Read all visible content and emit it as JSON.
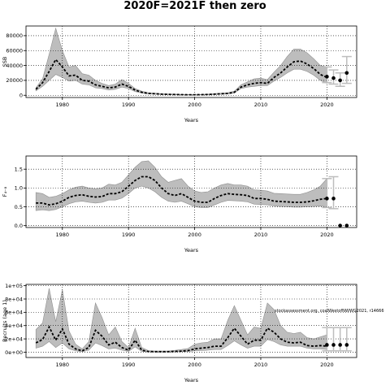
{
  "title": "2020F=2021F then zero",
  "chart_data": [
    {
      "type": "line",
      "ylabel": "SSB",
      "xlabel": "Years",
      "xlim": [
        1974.5,
        2024.5
      ],
      "ylim": [
        -3000,
        93000
      ],
      "xticks": [
        1980,
        1990,
        2000,
        2010,
        2020
      ],
      "yticks": [
        0,
        20000,
        40000,
        60000,
        80000
      ],
      "ytick_labels": [
        "0",
        "20000",
        "40000",
        "60000",
        "80000"
      ],
      "grid": "dotted",
      "x": [
        1976,
        1977,
        1978,
        1979,
        1980,
        1981,
        1982,
        1983,
        1984,
        1985,
        1986,
        1987,
        1988,
        1989,
        1990,
        1991,
        1992,
        1993,
        1994,
        1995,
        1996,
        1997,
        1998,
        1999,
        2000,
        2001,
        2002,
        2003,
        2004,
        2005,
        2006,
        2007,
        2008,
        2009,
        2010,
        2011,
        2012,
        2013,
        2014,
        2015,
        2016,
        2017,
        2018,
        2019,
        2020
      ],
      "y": [
        8000,
        17000,
        32000,
        48000,
        38000,
        26000,
        27000,
        20000,
        19000,
        14000,
        12000,
        10000,
        11000,
        15000,
        12000,
        7000,
        4000,
        2500,
        2000,
        1500,
        1200,
        1000,
        800,
        700,
        700,
        800,
        1000,
        1500,
        2000,
        2500,
        4000,
        11000,
        14000,
        16000,
        17000,
        16000,
        24000,
        30000,
        38000,
        45000,
        46000,
        42000,
        36000,
        28000,
        24000
      ],
      "lower": [
        6000,
        12000,
        20000,
        28000,
        24000,
        19000,
        20000,
        15000,
        14000,
        10000,
        9000,
        7000,
        8000,
        11000,
        9000,
        5000,
        3000,
        1800,
        1400,
        1000,
        800,
        700,
        500,
        400,
        400,
        500,
        600,
        1000,
        1300,
        1700,
        3000,
        9000,
        11000,
        12000,
        13000,
        13000,
        19000,
        24000,
        30000,
        35000,
        35000,
        32000,
        27000,
        20000,
        16000
      ],
      "upper": [
        10000,
        22000,
        55000,
        90000,
        60000,
        38000,
        40000,
        29000,
        27000,
        20000,
        16000,
        13000,
        15000,
        21000,
        16000,
        9000,
        5500,
        3500,
        2800,
        2100,
        1700,
        1500,
        1100,
        1000,
        1000,
        1200,
        1500,
        2200,
        2800,
        3500,
        5500,
        14000,
        18000,
        22000,
        23000,
        21000,
        31000,
        40000,
        52000,
        62000,
        62000,
        57000,
        49000,
        40000,
        38000
      ],
      "projection": {
        "x": [
          2020,
          2021,
          2022,
          2023
        ],
        "y": [
          25000,
          23000,
          20000,
          30000
        ],
        "lower": [
          17000,
          15000,
          12000,
          16000
        ],
        "upper": [
          38000,
          34000,
          30000,
          52000
        ]
      }
    },
    {
      "type": "line",
      "ylabel": "F₄₋₈",
      "xlabel": "Years",
      "xlim": [
        1974.5,
        2024.5
      ],
      "ylim": [
        -0.05,
        1.85
      ],
      "xticks": [
        1980,
        1990,
        2000,
        2010,
        2020
      ],
      "yticks": [
        0.0,
        0.5,
        1.0,
        1.5
      ],
      "ytick_labels": [
        "0.0",
        "0.5",
        "1.0",
        "1.5"
      ],
      "grid": "dotted",
      "x": [
        1976,
        1977,
        1978,
        1979,
        1980,
        1981,
        1982,
        1983,
        1984,
        1985,
        1986,
        1987,
        1988,
        1989,
        1990,
        1991,
        1992,
        1993,
        1994,
        1995,
        1996,
        1997,
        1998,
        1999,
        2000,
        2001,
        2002,
        2003,
        2004,
        2005,
        2006,
        2007,
        2008,
        2009,
        2010,
        2011,
        2012,
        2013,
        2014,
        2015,
        2016,
        2017,
        2018,
        2019,
        2020
      ],
      "y": [
        0.6,
        0.6,
        0.55,
        0.58,
        0.65,
        0.75,
        0.8,
        0.82,
        0.78,
        0.76,
        0.77,
        0.85,
        0.85,
        0.9,
        1.05,
        1.2,
        1.3,
        1.3,
        1.2,
        1.0,
        0.85,
        0.8,
        0.85,
        0.75,
        0.65,
        0.62,
        0.62,
        0.72,
        0.8,
        0.85,
        0.83,
        0.82,
        0.8,
        0.72,
        0.72,
        0.7,
        0.65,
        0.64,
        0.63,
        0.62,
        0.62,
        0.63,
        0.66,
        0.7,
        0.72
      ],
      "lower": [
        0.4,
        0.42,
        0.4,
        0.43,
        0.5,
        0.58,
        0.63,
        0.65,
        0.62,
        0.6,
        0.62,
        0.68,
        0.68,
        0.73,
        0.85,
        1.0,
        1.05,
        1.0,
        0.9,
        0.75,
        0.65,
        0.62,
        0.65,
        0.58,
        0.5,
        0.48,
        0.48,
        0.55,
        0.62,
        0.67,
        0.66,
        0.65,
        0.63,
        0.57,
        0.56,
        0.55,
        0.52,
        0.51,
        0.5,
        0.49,
        0.49,
        0.5,
        0.51,
        0.52,
        0.5
      ],
      "upper": [
        0.88,
        0.85,
        0.75,
        0.78,
        0.85,
        0.95,
        1.02,
        1.05,
        1.0,
        0.98,
        1.0,
        1.1,
        1.08,
        1.15,
        1.35,
        1.55,
        1.7,
        1.72,
        1.55,
        1.3,
        1.15,
        1.2,
        1.25,
        1.05,
        0.92,
        0.88,
        0.9,
        1.0,
        1.08,
        1.12,
        1.08,
        1.08,
        1.05,
        0.95,
        0.94,
        0.92,
        0.86,
        0.85,
        0.84,
        0.83,
        0.83,
        0.88,
        0.95,
        1.05,
        1.25
      ],
      "projection": {
        "x": [
          2020,
          2021,
          2022,
          2023
        ],
        "y": [
          0.72,
          0.72,
          0.0,
          0.0
        ],
        "lower": [
          0.48,
          0.45,
          0.0,
          0.0
        ],
        "upper": [
          1.25,
          1.3,
          0.0,
          0.0
        ]
      }
    },
    {
      "type": "line",
      "ylabel": "Recruits (age 1)",
      "xlabel": "Years",
      "xlim": [
        1974.5,
        2024.5
      ],
      "ylim": [
        -0.4,
        5.1
      ],
      "xticks": [
        1980,
        1990,
        2000,
        2010,
        2020
      ],
      "yticks": [
        0,
        1,
        2,
        3,
        4,
        5
      ],
      "ytick_labels": [
        "0e+00",
        "2e+04",
        "4e+04",
        "6e+04",
        "8e+04",
        "1e+05"
      ],
      "grid": "dotted",
      "annotation": "stockassessment.org, coalWestofNWWG2021, r14666",
      "x": [
        1976,
        1977,
        1978,
        1979,
        1980,
        1981,
        1982,
        1983,
        1984,
        1985,
        1986,
        1987,
        1988,
        1989,
        1990,
        1991,
        1992,
        1993,
        1994,
        1995,
        1996,
        1997,
        1998,
        1999,
        2000,
        2001,
        2002,
        2003,
        2004,
        2005,
        2006,
        2007,
        2008,
        2009,
        2010,
        2011,
        2012,
        2013,
        2014,
        2015,
        2016,
        2017,
        2018,
        2019,
        2020
      ],
      "y": [
        0.7,
        0.95,
        1.9,
        0.9,
        1.75,
        0.6,
        0.25,
        0.1,
        0.35,
        1.65,
        1.2,
        0.55,
        0.75,
        0.35,
        0.15,
        0.9,
        0.15,
        0.05,
        0.04,
        0.04,
        0.04,
        0.06,
        0.08,
        0.12,
        0.25,
        0.3,
        0.35,
        0.45,
        0.45,
        1.1,
        1.8,
        1.2,
        0.6,
        0.9,
        0.9,
        1.8,
        1.5,
        1.0,
        0.75,
        0.7,
        0.75,
        0.5,
        0.45,
        0.5,
        0.45
      ],
      "lower": [
        0.3,
        0.45,
        0.8,
        0.35,
        0.7,
        0.25,
        0.1,
        0.04,
        0.15,
        0.7,
        0.5,
        0.25,
        0.3,
        0.15,
        0.06,
        0.4,
        0.06,
        0.02,
        0.02,
        0.02,
        0.02,
        0.03,
        0.03,
        0.05,
        0.1,
        0.12,
        0.15,
        0.2,
        0.2,
        0.5,
        0.85,
        0.55,
        0.3,
        0.45,
        0.45,
        0.95,
        0.8,
        0.55,
        0.45,
        0.45,
        0.45,
        0.3,
        0.25,
        0.25,
        0.2
      ],
      "upper": [
        1.7,
        2.2,
        4.8,
        2.3,
        4.7,
        1.6,
        0.6,
        0.25,
        0.8,
        3.7,
        2.6,
        1.3,
        1.9,
        0.8,
        0.35,
        1.8,
        0.35,
        0.12,
        0.09,
        0.09,
        0.09,
        0.14,
        0.2,
        0.28,
        0.6,
        0.7,
        0.75,
        1.0,
        1.0,
        2.4,
        3.5,
        2.4,
        1.3,
        1.9,
        1.8,
        3.7,
        3.2,
        2.0,
        1.5,
        1.4,
        1.5,
        1.1,
        1.0,
        1.15,
        1.3
      ],
      "projection": {
        "x": [
          2020,
          2021,
          2022,
          2023
        ],
        "y": [
          0.55,
          0.55,
          0.55,
          0.55
        ],
        "lower": [
          0.1,
          0.1,
          0.1,
          0.1
        ],
        "upper": [
          1.85,
          1.85,
          1.85,
          1.85
        ]
      }
    }
  ]
}
